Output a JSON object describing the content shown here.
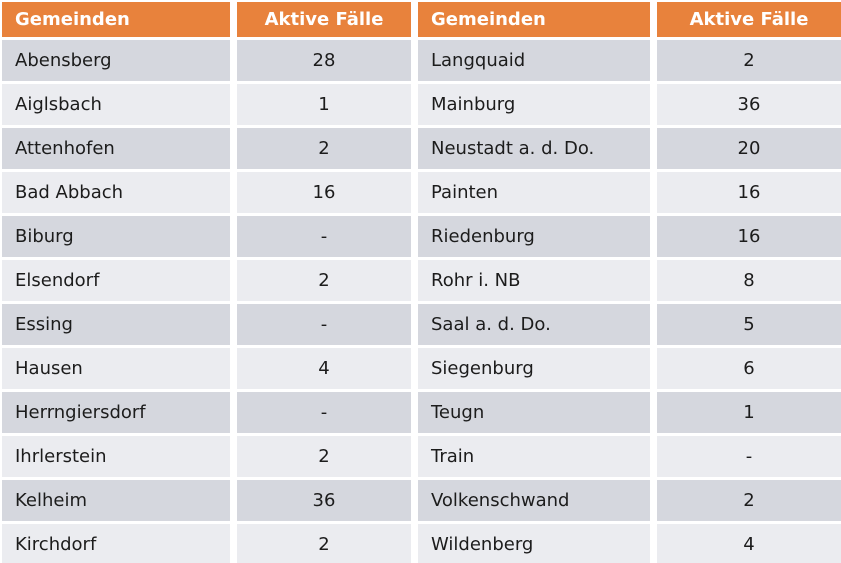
{
  "table": {
    "headers": {
      "gemeinden_left": "Gemeinden",
      "faelle_left": "Aktive Fälle",
      "gemeinden_right": "Gemeinden",
      "faelle_right": "Aktive Fälle"
    },
    "rows": [
      {
        "left": {
          "gemeinde": "Abensberg",
          "faelle": "28"
        },
        "right": {
          "gemeinde": "Langquaid",
          "faelle": "2"
        }
      },
      {
        "left": {
          "gemeinde": "Aiglsbach",
          "faelle": "1"
        },
        "right": {
          "gemeinde": "Mainburg",
          "faelle": "36"
        }
      },
      {
        "left": {
          "gemeinde": "Attenhofen",
          "faelle": "2"
        },
        "right": {
          "gemeinde": "Neustadt a. d. Do.",
          "faelle": "20"
        }
      },
      {
        "left": {
          "gemeinde": "Bad Abbach",
          "faelle": "16"
        },
        "right": {
          "gemeinde": "Painten",
          "faelle": "16"
        }
      },
      {
        "left": {
          "gemeinde": "Biburg",
          "faelle": "-"
        },
        "right": {
          "gemeinde": "Riedenburg",
          "faelle": "16"
        }
      },
      {
        "left": {
          "gemeinde": "Elsendorf",
          "faelle": "2"
        },
        "right": {
          "gemeinde": "Rohr i. NB",
          "faelle": "8"
        }
      },
      {
        "left": {
          "gemeinde": "Essing",
          "faelle": "-"
        },
        "right": {
          "gemeinde": "Saal a. d. Do.",
          "faelle": "5"
        }
      },
      {
        "left": {
          "gemeinde": "Hausen",
          "faelle": "4"
        },
        "right": {
          "gemeinde": "Siegenburg",
          "faelle": "6"
        }
      },
      {
        "left": {
          "gemeinde": "Herrngiersdorf",
          "faelle": "-"
        },
        "right": {
          "gemeinde": "Teugn",
          "faelle": "1"
        }
      },
      {
        "left": {
          "gemeinde": "Ihrlerstein",
          "faelle": "2"
        },
        "right": {
          "gemeinde": "Train",
          "faelle": "-"
        }
      },
      {
        "left": {
          "gemeinde": "Kelheim",
          "faelle": "36"
        },
        "right": {
          "gemeinde": "Volkenschwand",
          "faelle": "2"
        }
      },
      {
        "left": {
          "gemeinde": "Kirchdorf",
          "faelle": "2"
        },
        "right": {
          "gemeinde": "Wildenberg",
          "faelle": "4"
        }
      }
    ]
  },
  "colors": {
    "header_bg": "#e8823c",
    "header_text": "#ffffff",
    "row_stripe_dark": "#d5d7de",
    "row_stripe_light": "#ebecf0",
    "body_text": "#1c1c1c",
    "gap": "#ffffff"
  }
}
